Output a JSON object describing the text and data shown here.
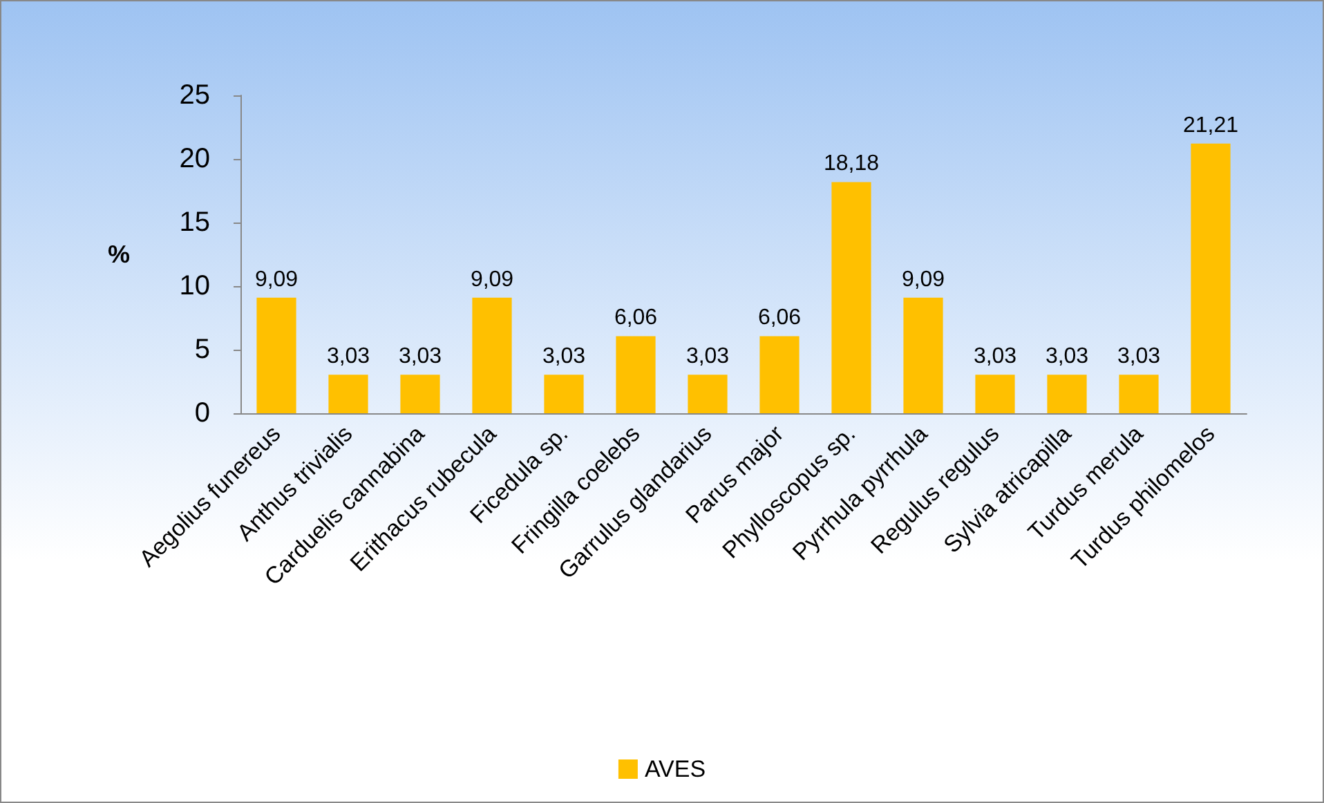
{
  "chart_data": {
    "type": "bar",
    "ylabel": "%",
    "categories": [
      "Aegolius funereus",
      "Anthus trivialis",
      "Carduelis cannabina",
      "Erithacus rubecula",
      "Ficedula sp.",
      "Fringilla coelebs",
      "Garrulus glandarius",
      "Parus major",
      "Phylloscopus sp.",
      "Pyrrhula pyrrhula",
      "Regulus regulus",
      "Sylvia atricapilla",
      "Turdus merula",
      "Turdus philomelos"
    ],
    "series": [
      {
        "name": "AVES",
        "color": "#ffc000",
        "values": [
          9.09,
          3.03,
          3.03,
          9.09,
          3.03,
          6.06,
          3.03,
          6.06,
          18.18,
          9.09,
          3.03,
          3.03,
          3.03,
          21.21
        ],
        "value_labels": [
          "9,09",
          "3,03",
          "3,03",
          "9,09",
          "3,03",
          "6,06",
          "3,03",
          "6,06",
          "18,18",
          "9,09",
          "3,03",
          "3,03",
          "3,03",
          "21,21"
        ]
      }
    ],
    "ylim": [
      0,
      25
    ],
    "yticks": [
      0,
      5,
      10,
      15,
      20,
      25
    ],
    "grid": false,
    "legend": "bottom"
  }
}
